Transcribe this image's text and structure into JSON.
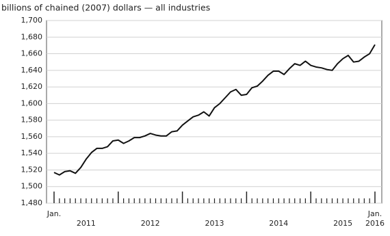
{
  "chart_data": {
    "type": "line",
    "title": "billions of chained (2007) dollars — all industries",
    "categories": [
      "Jan.",
      null,
      null,
      null,
      null,
      null,
      null,
      null,
      null,
      null,
      null,
      null,
      null,
      null,
      null,
      null,
      null,
      null,
      null,
      null,
      null,
      null,
      null,
      null,
      null,
      null,
      null,
      null,
      null,
      null,
      null,
      null,
      null,
      null,
      null,
      null,
      null,
      null,
      null,
      null,
      null,
      null,
      null,
      null,
      null,
      null,
      null,
      null,
      null,
      null,
      null,
      null,
      null,
      null,
      null,
      null,
      null,
      null,
      null,
      null,
      "Jan."
    ],
    "x_group_labels": [
      "2011",
      "2012",
      "2013",
      "2014",
      "2015",
      "2016"
    ],
    "series": [
      {
        "name": "all industries",
        "color": "#111111",
        "values": [
          1517,
          1514,
          1518,
          1519,
          1516,
          1523,
          1533,
          1541,
          1546,
          1546,
          1548,
          1555,
          1556,
          1552,
          1555,
          1559,
          1559,
          1561,
          1564,
          1562,
          1561,
          1561,
          1566,
          1567,
          1574,
          1579,
          1584,
          1586,
          1590,
          1585,
          1595,
          1600,
          1607,
          1614,
          1617,
          1610,
          1611,
          1619,
          1621,
          1627,
          1634,
          1639,
          1639,
          1635,
          1642,
          1648,
          1646,
          1651,
          1646,
          1644,
          1643,
          1641,
          1640,
          1648,
          1654,
          1658,
          1650,
          1651,
          1656,
          1660,
          1671
        ]
      }
    ],
    "ylim": [
      1480,
      1700
    ],
    "yticks": [
      {
        "value": 1480,
        "label": "1,480"
      },
      {
        "value": 1500,
        "label": "1,500"
      },
      {
        "value": 1520,
        "label": "1,520"
      },
      {
        "value": 1540,
        "label": "1,540"
      },
      {
        "value": 1560,
        "label": "1,560"
      },
      {
        "value": 1580,
        "label": "1,580"
      },
      {
        "value": 1600,
        "label": "1,600"
      },
      {
        "value": 1620,
        "label": "1,620"
      },
      {
        "value": 1640,
        "label": "1,640"
      },
      {
        "value": 1660,
        "label": "1,660"
      },
      {
        "value": 1680,
        "label": "1,680"
      },
      {
        "value": 1700,
        "label": "1,700"
      }
    ],
    "grid": true
  }
}
